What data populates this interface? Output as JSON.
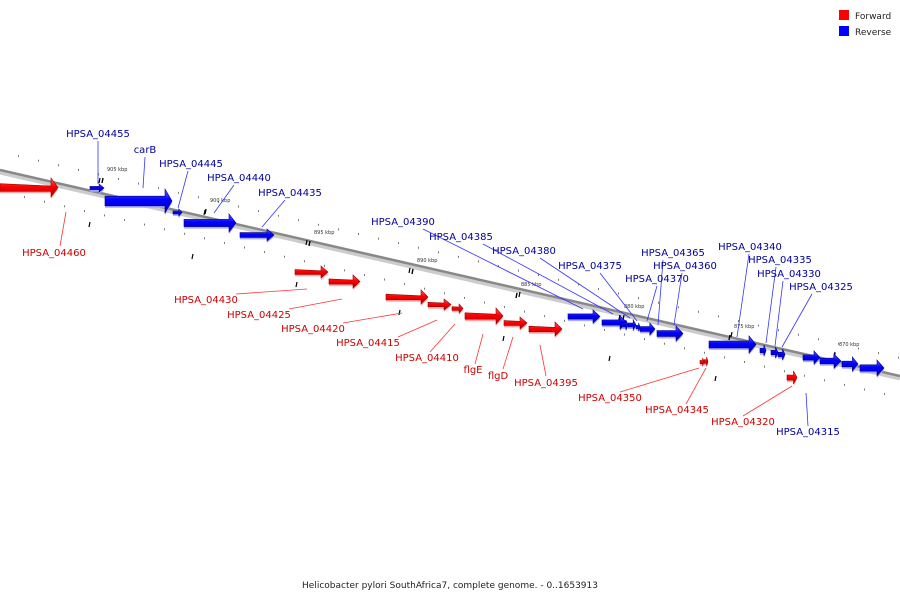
{
  "caption": "Helicobacter pylori SouthAfrica7, complete genome. - 0..1653913",
  "legend": [
    {
      "label": "Forward",
      "color": "#ff0000"
    },
    {
      "label": "Reverse",
      "color": "#0000ff"
    }
  ],
  "colors": {
    "forward": "#ff0000",
    "reverse": "#0000ff",
    "forward_label": "#cc0000",
    "reverse_label": "#000099",
    "axis": "#888888"
  },
  "ticks": [
    {
      "label": "905 kbp"
    },
    {
      "label": "900 kbp"
    },
    {
      "label": "895 kbp"
    },
    {
      "label": "890 kbp"
    },
    {
      "label": "885 kbp"
    },
    {
      "label": "880 kbp"
    },
    {
      "label": "875 kbp"
    },
    {
      "label": "870 kbp"
    }
  ],
  "genes": [
    {
      "name": "HPSA_04460",
      "strand": "forward"
    },
    {
      "name": "HPSA_04455",
      "strand": "reverse"
    },
    {
      "name": "carB",
      "strand": "reverse"
    },
    {
      "name": "HPSA_04445",
      "strand": "reverse"
    },
    {
      "name": "HPSA_04440",
      "strand": "reverse"
    },
    {
      "name": "HPSA_04435",
      "strand": "reverse"
    },
    {
      "name": "HPSA_04430",
      "strand": "forward"
    },
    {
      "name": "HPSA_04425",
      "strand": "forward"
    },
    {
      "name": "HPSA_04420",
      "strand": "forward"
    },
    {
      "name": "HPSA_04415",
      "strand": "forward"
    },
    {
      "name": "HPSA_04410",
      "strand": "forward"
    },
    {
      "name": "flgE",
      "strand": "forward"
    },
    {
      "name": "flgD",
      "strand": "forward"
    },
    {
      "name": "HPSA_04395",
      "strand": "forward"
    },
    {
      "name": "HPSA_04390",
      "strand": "reverse"
    },
    {
      "name": "HPSA_04385",
      "strand": "reverse"
    },
    {
      "name": "HPSA_04380",
      "strand": "reverse"
    },
    {
      "name": "HPSA_04375",
      "strand": "reverse"
    },
    {
      "name": "HPSA_04370",
      "strand": "reverse"
    },
    {
      "name": "HPSA_04365",
      "strand": "reverse"
    },
    {
      "name": "HPSA_04360",
      "strand": "reverse"
    },
    {
      "name": "HPSA_04350",
      "strand": "forward"
    },
    {
      "name": "HPSA_04345",
      "strand": "forward"
    },
    {
      "name": "HPSA_04340",
      "strand": "reverse"
    },
    {
      "name": "HPSA_04335",
      "strand": "reverse"
    },
    {
      "name": "HPSA_04330",
      "strand": "reverse"
    },
    {
      "name": "HPSA_04325",
      "strand": "reverse"
    },
    {
      "name": "HPSA_04320",
      "strand": "forward"
    },
    {
      "name": "HPSA_04315",
      "strand": "reverse"
    }
  ]
}
